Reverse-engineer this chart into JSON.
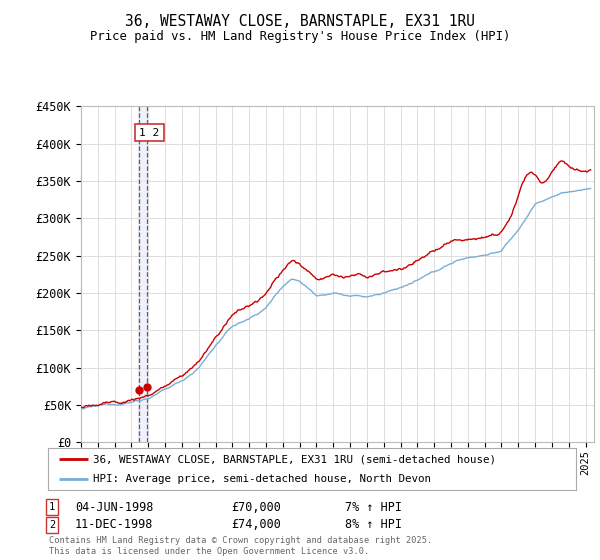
{
  "title": "36, WESTAWAY CLOSE, BARNSTAPLE, EX31 1RU",
  "subtitle": "Price paid vs. HM Land Registry's House Price Index (HPI)",
  "ylabel_ticks": [
    "£0",
    "£50K",
    "£100K",
    "£150K",
    "£200K",
    "£250K",
    "£300K",
    "£350K",
    "£400K",
    "£450K"
  ],
  "ylim": [
    0,
    450000
  ],
  "xlim_start": 1995.0,
  "xlim_end": 2025.5,
  "red_line_color": "#cc0000",
  "blue_line_color": "#7aaed6",
  "dashed_line_color": "#cc0000",
  "dashed_fill_color": "#ddeeff",
  "legend_label_red": "36, WESTAWAY CLOSE, BARNSTAPLE, EX31 1RU (semi-detached house)",
  "legend_label_blue": "HPI: Average price, semi-detached house, North Devon",
  "transaction1_date": "04-JUN-1998",
  "transaction1_price": "£70,000",
  "transaction1_hpi": "7% ↑ HPI",
  "transaction2_date": "11-DEC-1998",
  "transaction2_price": "£74,000",
  "transaction2_hpi": "8% ↑ HPI",
  "footer": "Contains HM Land Registry data © Crown copyright and database right 2025.\nThis data is licensed under the Open Government Licence v3.0.",
  "transaction1_x": 1998.42,
  "transaction2_x": 1998.92,
  "background_color": "#ffffff",
  "grid_color": "#dddddd",
  "hpi_base_values": [
    [
      1995.0,
      45000
    ],
    [
      1996.0,
      47000
    ],
    [
      1997.0,
      50000
    ],
    [
      1998.0,
      54000
    ],
    [
      1999.0,
      60000
    ],
    [
      2000.0,
      70000
    ],
    [
      2001.0,
      82000
    ],
    [
      2002.0,
      100000
    ],
    [
      2003.0,
      130000
    ],
    [
      2004.0,
      155000
    ],
    [
      2005.0,
      165000
    ],
    [
      2006.0,
      180000
    ],
    [
      2007.0,
      210000
    ],
    [
      2007.5,
      220000
    ],
    [
      2008.0,
      218000
    ],
    [
      2009.0,
      200000
    ],
    [
      2010.0,
      205000
    ],
    [
      2011.0,
      200000
    ],
    [
      2012.0,
      198000
    ],
    [
      2013.0,
      202000
    ],
    [
      2014.0,
      210000
    ],
    [
      2015.0,
      218000
    ],
    [
      2016.0,
      228000
    ],
    [
      2017.0,
      240000
    ],
    [
      2018.0,
      248000
    ],
    [
      2019.0,
      252000
    ],
    [
      2020.0,
      258000
    ],
    [
      2021.0,
      285000
    ],
    [
      2022.0,
      320000
    ],
    [
      2023.0,
      330000
    ],
    [
      2024.0,
      335000
    ],
    [
      2025.3,
      340000
    ]
  ]
}
